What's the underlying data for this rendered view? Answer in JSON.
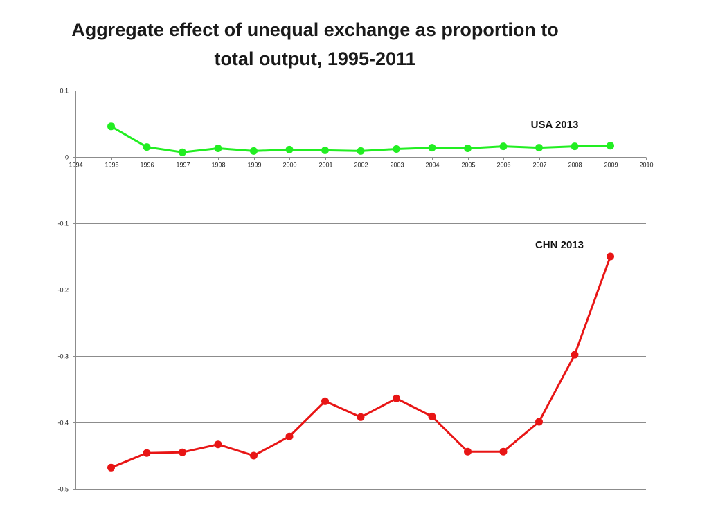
{
  "chart_data": {
    "type": "line",
    "title_line1": "Aggregate effect of unequal exchange as proportion to",
    "title_line2": "total output, 1995-2011",
    "xlabel": "",
    "ylabel": "",
    "xlim": [
      1994,
      2010
    ],
    "ylim": [
      -0.5,
      0.1
    ],
    "grid": true,
    "x_ticks": [
      1994,
      1995,
      1996,
      1997,
      1998,
      1999,
      2000,
      2001,
      2002,
      2003,
      2004,
      2005,
      2006,
      2007,
      2008,
      2009,
      2010
    ],
    "x_tick_labels": [
      "1994",
      "1995",
      "1996",
      "1997",
      "1998",
      "1999",
      "2000",
      "2001",
      "2002",
      "2003",
      "2004",
      "2005",
      "2006",
      "2007",
      "2008",
      "2009",
      "2010"
    ],
    "y_ticks": [
      0.1,
      0,
      -0.1,
      -0.2,
      -0.3,
      -0.4,
      -0.5
    ],
    "y_tick_labels": [
      "0.1",
      "0",
      "-0.1",
      "-0.2",
      "-0.3",
      "-0.4",
      "-0.5"
    ],
    "x": [
      1995,
      1996,
      1997,
      1998,
      1999,
      2000,
      2001,
      2002,
      2003,
      2004,
      2005,
      2006,
      2007,
      2008,
      2009
    ],
    "series": [
      {
        "name": "USA  2013",
        "color": "#22ee22",
        "values": [
          0.046,
          0.015,
          0.007,
          0.013,
          0.009,
          0.011,
          0.01,
          0.009,
          0.012,
          0.014,
          0.013,
          0.016,
          0.014,
          0.016,
          0.017
        ]
      },
      {
        "name": "CHN 2013",
        "color": "#e81515",
        "values": [
          -0.468,
          -0.446,
          -0.445,
          -0.433,
          -0.45,
          -0.421,
          -0.368,
          -0.392,
          -0.364,
          -0.391,
          -0.444,
          -0.444,
          -0.399,
          -0.298,
          -0.15
        ]
      }
    ]
  }
}
